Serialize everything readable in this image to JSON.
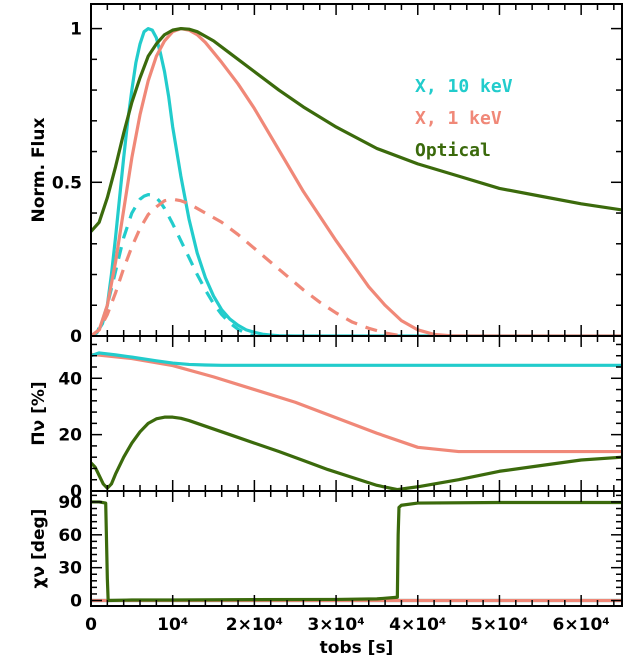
{
  "colors": {
    "x10": "#22cccc",
    "x1": "#f08878",
    "optical": "#3b6a0c",
    "axis": "#000000"
  },
  "chart_data": [
    {
      "type": "line",
      "ylabel": "Norm. Flux",
      "xlim": [
        0,
        65000
      ],
      "ylim": [
        0,
        1.08
      ],
      "yticks": [
        {
          "v": 0,
          "label": "0"
        },
        {
          "v": 0.5,
          "label": "0.5"
        },
        {
          "v": 1,
          "label": "1"
        }
      ],
      "legend": [
        "X, 10 keV",
        "X, 1 keV",
        "Optical"
      ],
      "series": [
        {
          "name": "X, 10 keV",
          "key": "x10",
          "dashed": false,
          "x": [
            0,
            700,
            1400,
            2000,
            2500,
            3000,
            3500,
            4000,
            4500,
            5000,
            5500,
            6000,
            6500,
            7000,
            7500,
            8000,
            8500,
            9000,
            9500,
            10000,
            11000,
            12000,
            13000,
            14000,
            15000,
            16000,
            17000,
            18000,
            19000,
            20000,
            21000,
            22000,
            23000,
            24000,
            25000,
            26000,
            28000,
            30000,
            65000
          ],
          "y": [
            0,
            0.01,
            0.04,
            0.1,
            0.2,
            0.32,
            0.45,
            0.58,
            0.7,
            0.8,
            0.89,
            0.95,
            0.99,
            1.0,
            0.995,
            0.97,
            0.92,
            0.86,
            0.78,
            0.68,
            0.52,
            0.38,
            0.27,
            0.19,
            0.13,
            0.085,
            0.055,
            0.035,
            0.02,
            0.012,
            0.006,
            0.003,
            0.001,
            0.0005,
            0,
            0,
            0,
            0,
            0
          ]
        },
        {
          "name": "X, 10 keV",
          "key": "x10",
          "dashed": true,
          "x": [
            0,
            700,
            1400,
            2000,
            3000,
            4000,
            5000,
            6000,
            6500,
            7000,
            7500,
            8000,
            8500,
            9000,
            10000,
            11000,
            12000,
            13000,
            14000,
            15000,
            16000,
            17000,
            18000,
            19000,
            20000
          ],
          "y": [
            0,
            0.01,
            0.05,
            0.1,
            0.21,
            0.32,
            0.4,
            0.445,
            0.455,
            0.46,
            0.458,
            0.45,
            0.435,
            0.415,
            0.365,
            0.31,
            0.255,
            0.2,
            0.15,
            0.105,
            0.07,
            0.042,
            0.022,
            0.008,
            0
          ]
        },
        {
          "name": "X, 1 keV",
          "key": "x1",
          "dashed": false,
          "x": [
            0,
            1000,
            2000,
            3000,
            4000,
            5000,
            6000,
            7000,
            8000,
            9000,
            10000,
            11000,
            12000,
            13000,
            14000,
            16000,
            18000,
            20000,
            22000,
            24000,
            26000,
            28000,
            30000,
            32000,
            34000,
            36000,
            38000,
            40000,
            42000,
            44000,
            46000,
            48000,
            65000
          ],
          "y": [
            0,
            0.02,
            0.1,
            0.24,
            0.41,
            0.58,
            0.72,
            0.83,
            0.91,
            0.96,
            0.99,
            1.0,
            0.995,
            0.98,
            0.955,
            0.89,
            0.82,
            0.74,
            0.65,
            0.56,
            0.47,
            0.39,
            0.31,
            0.235,
            0.16,
            0.1,
            0.05,
            0.02,
            0.005,
            0.001,
            0,
            0,
            0
          ]
        },
        {
          "name": "X, 1 keV",
          "key": "x1",
          "dashed": true,
          "x": [
            0,
            1000,
            2000,
            3000,
            4000,
            5000,
            6000,
            7000,
            8000,
            9000,
            10000,
            11000,
            12000,
            14000,
            16000,
            18000,
            20000,
            22000,
            24000,
            26000,
            28000,
            30000,
            32000,
            34000,
            36000,
            38000
          ],
          "y": [
            0,
            0.02,
            0.07,
            0.14,
            0.22,
            0.29,
            0.35,
            0.395,
            0.42,
            0.44,
            0.445,
            0.44,
            0.43,
            0.4,
            0.37,
            0.33,
            0.285,
            0.24,
            0.195,
            0.15,
            0.11,
            0.075,
            0.045,
            0.025,
            0.01,
            0
          ]
        },
        {
          "name": "Optical",
          "key": "optical",
          "dashed": false,
          "x": [
            0,
            1000,
            2000,
            3000,
            4000,
            5000,
            6000,
            7000,
            8000,
            9000,
            10000,
            11000,
            12000,
            13000,
            14000,
            15000,
            17000,
            20000,
            23000,
            26000,
            30000,
            35000,
            40000,
            45000,
            50000,
            55000,
            60000,
            65000
          ],
          "y": [
            0.34,
            0.37,
            0.45,
            0.55,
            0.66,
            0.76,
            0.84,
            0.91,
            0.95,
            0.98,
            0.995,
            1.0,
            0.998,
            0.99,
            0.975,
            0.96,
            0.92,
            0.86,
            0.8,
            0.745,
            0.68,
            0.61,
            0.56,
            0.52,
            0.48,
            0.455,
            0.43,
            0.41
          ]
        }
      ]
    },
    {
      "type": "line",
      "ylabel": "Πν [%]",
      "xlim": [
        0,
        65000
      ],
      "ylim": [
        0,
        55
      ],
      "yticks": [
        {
          "v": 0,
          "label": "0"
        },
        {
          "v": 20,
          "label": "20"
        },
        {
          "v": 40,
          "label": "40"
        }
      ],
      "series": [
        {
          "name": "X, 1 keV",
          "key": "x1",
          "x": [
            0,
            5000,
            10000,
            15000,
            20000,
            25000,
            30000,
            35000,
            40000,
            45000,
            50000,
            55000,
            60000,
            65000
          ],
          "y": [
            48.5,
            47,
            44.5,
            40.5,
            36,
            31.5,
            26,
            20.5,
            15.5,
            14,
            14,
            14,
            14,
            14
          ]
        },
        {
          "name": "X, 10 keV",
          "key": "x10",
          "x": [
            0,
            1000,
            3000,
            5000,
            8000,
            10000,
            12000,
            14000,
            16000,
            20000,
            30000,
            40000,
            50000,
            65000
          ],
          "y": [
            48,
            49,
            48.3,
            47.5,
            46.2,
            45.4,
            44.9,
            44.7,
            44.6,
            44.6,
            44.6,
            44.6,
            44.6,
            44.6
          ]
        },
        {
          "name": "Optical",
          "key": "optical",
          "x": [
            0,
            500,
            1000,
            1500,
            2000,
            2500,
            3000,
            4000,
            5000,
            6000,
            7000,
            8000,
            9000,
            10000,
            11000,
            12000,
            14000,
            16000,
            18000,
            20000,
            23000,
            26000,
            29000,
            32000,
            35000,
            37500,
            40000,
            45000,
            50000,
            55000,
            60000,
            65000
          ],
          "y": [
            10,
            8.5,
            5.5,
            2.5,
            1,
            2.5,
            6,
            12,
            17,
            21,
            24,
            25.6,
            26.2,
            26.2,
            25.8,
            25,
            23,
            21,
            19,
            17,
            14,
            10.8,
            7.6,
            4.8,
            2,
            0.5,
            1.5,
            4,
            7,
            9,
            11,
            12
          ]
        }
      ]
    },
    {
      "type": "line",
      "ylabel": "χν [deg]",
      "xlabel": "tobs [s]",
      "xlim": [
        0,
        65000
      ],
      "ylim": [
        -5,
        100
      ],
      "yticks": [
        {
          "v": 0,
          "label": "0"
        },
        {
          "v": 30,
          "label": "30"
        },
        {
          "v": 60,
          "label": "60"
        },
        {
          "v": 90,
          "label": "90"
        }
      ],
      "xticks": [
        {
          "v": 0,
          "label": "0"
        },
        {
          "v": 10000,
          "label": "10⁴"
        },
        {
          "v": 20000,
          "label": "2×10⁴"
        },
        {
          "v": 30000,
          "label": "3×10⁴"
        },
        {
          "v": 40000,
          "label": "4×10⁴"
        },
        {
          "v": 50000,
          "label": "5×10⁴"
        },
        {
          "v": 60000,
          "label": "6×10⁴"
        }
      ],
      "series": [
        {
          "name": "X, 10 keV",
          "key": "x10",
          "x": [
            0,
            65000
          ],
          "y": [
            0,
            0
          ]
        },
        {
          "name": "X, 1 keV",
          "key": "x1",
          "x": [
            0,
            65000
          ],
          "y": [
            0,
            0
          ]
        },
        {
          "name": "Optical",
          "key": "optical",
          "x": [
            0,
            1000,
            1800,
            2000,
            2100,
            5000,
            10000,
            20000,
            30000,
            35000,
            37500,
            37600,
            37700,
            38000,
            40000,
            50000,
            65000
          ],
          "y": [
            90,
            90,
            89,
            20,
            0,
            0.5,
            0.5,
            0.8,
            1,
            1.5,
            3,
            60,
            85,
            87,
            89,
            89.5,
            89.5
          ]
        }
      ]
    }
  ]
}
